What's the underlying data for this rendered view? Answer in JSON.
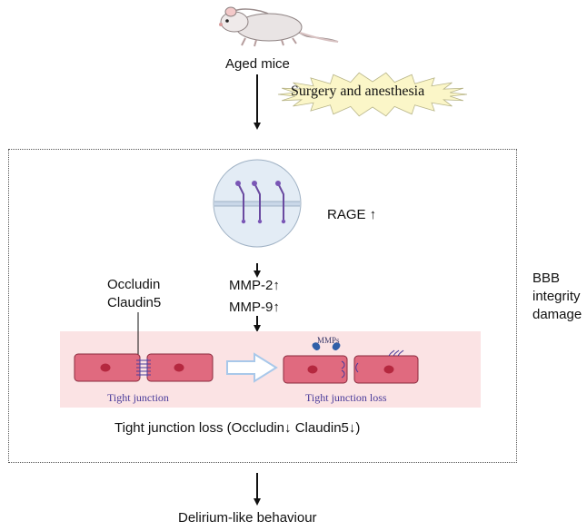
{
  "labels": {
    "aged_mice": "Aged mice",
    "surgery": "Surgery and anesthesia",
    "rage": "RAGE ↑",
    "occludin": "Occludin",
    "claudin": "Claudin5",
    "mmp2": "MMP-2↑",
    "mmp9": "MMP-9↑",
    "bbb": [
      "BBB",
      "integrity",
      "damage"
    ],
    "tight_junction": "Tight junction",
    "tight_junction_loss": "Tight junction loss",
    "mmps": "MMPs",
    "tj_loss_summary": "Tight junction loss (Occludin↓ Claudin5↓)",
    "delirium": "Delirium-like behaviour"
  },
  "colors": {
    "cell_fill": "#e06a7f",
    "cell_stroke": "#8a2a3d",
    "nucleus": "#b5283f",
    "band": "#fbe3e4",
    "junction_text": "#4a3b9a",
    "starburst": "#fbf6c8",
    "arrow_hollow": "#a8c8ea"
  },
  "icons": {
    "mouse": "mouse-icon",
    "receptor": "rage-receptor-icon",
    "mmp_enzyme": "mmp-enzyme-icon"
  }
}
